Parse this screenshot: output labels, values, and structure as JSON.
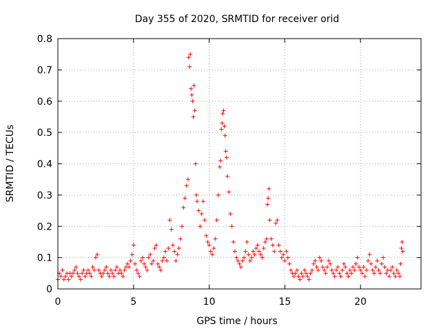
{
  "chart_data": {
    "type": "scatter",
    "title": "Day 355 of 2020, SRMTID for receiver orid",
    "xlabel": "GPS time / hours",
    "ylabel": "SRMTID / TECUs",
    "xlim": [
      0,
      24
    ],
    "ylim": [
      0,
      0.8
    ],
    "xticks": [
      0,
      5,
      10,
      15,
      20
    ],
    "xtick_labels": [
      "0",
      "5",
      "10",
      "15",
      "20"
    ],
    "yticks": [
      0,
      0.1,
      0.2,
      0.3,
      0.4,
      0.5,
      0.6,
      0.7,
      0.8
    ],
    "ytick_labels": [
      "0",
      "0.1",
      "0.2",
      "0.3",
      "0.4",
      "0.5",
      "0.6",
      "0.7",
      "0.8"
    ],
    "grid": true,
    "marker": "+",
    "color": "#ff0000",
    "series": [
      {
        "name": "SRMTID",
        "points": [
          [
            0.0,
            0.03
          ],
          [
            0.1,
            0.05
          ],
          [
            0.2,
            0.04
          ],
          [
            0.3,
            0.06
          ],
          [
            0.4,
            0.03
          ],
          [
            0.5,
            0.04
          ],
          [
            0.6,
            0.05
          ],
          [
            0.7,
            0.03
          ],
          [
            0.8,
            0.05
          ],
          [
            0.9,
            0.04
          ],
          [
            1.0,
            0.05
          ],
          [
            1.1,
            0.06
          ],
          [
            1.2,
            0.07
          ],
          [
            1.3,
            0.05
          ],
          [
            1.4,
            0.04
          ],
          [
            1.5,
            0.03
          ],
          [
            1.6,
            0.05
          ],
          [
            1.7,
            0.06
          ],
          [
            1.8,
            0.04
          ],
          [
            1.9,
            0.05
          ],
          [
            2.0,
            0.06
          ],
          [
            2.1,
            0.05
          ],
          [
            2.2,
            0.04
          ],
          [
            2.3,
            0.07
          ],
          [
            2.4,
            0.06
          ],
          [
            2.5,
            0.1
          ],
          [
            2.6,
            0.11
          ],
          [
            2.7,
            0.06
          ],
          [
            2.8,
            0.05
          ],
          [
            2.9,
            0.04
          ],
          [
            3.0,
            0.05
          ],
          [
            3.1,
            0.06
          ],
          [
            3.2,
            0.07
          ],
          [
            3.3,
            0.05
          ],
          [
            3.4,
            0.04
          ],
          [
            3.5,
            0.06
          ],
          [
            3.6,
            0.05
          ],
          [
            3.7,
            0.04
          ],
          [
            3.8,
            0.06
          ],
          [
            3.9,
            0.07
          ],
          [
            4.0,
            0.05
          ],
          [
            4.1,
            0.06
          ],
          [
            4.2,
            0.05
          ],
          [
            4.3,
            0.04
          ],
          [
            4.4,
            0.06
          ],
          [
            4.5,
            0.07
          ],
          [
            4.6,
            0.08
          ],
          [
            4.7,
            0.07
          ],
          [
            4.8,
            0.09
          ],
          [
            4.9,
            0.11
          ],
          [
            5.0,
            0.14
          ],
          [
            5.1,
            0.08
          ],
          [
            5.2,
            0.06
          ],
          [
            5.3,
            0.05
          ],
          [
            5.4,
            0.04
          ],
          [
            5.5,
            0.09
          ],
          [
            5.6,
            0.1
          ],
          [
            5.7,
            0.08
          ],
          [
            5.8,
            0.07
          ],
          [
            5.9,
            0.06
          ],
          [
            6.0,
            0.1
          ],
          [
            6.1,
            0.11
          ],
          [
            6.2,
            0.08
          ],
          [
            6.3,
            0.09
          ],
          [
            6.4,
            0.13
          ],
          [
            6.5,
            0.14
          ],
          [
            6.6,
            0.08
          ],
          [
            6.7,
            0.07
          ],
          [
            6.8,
            0.06
          ],
          [
            6.9,
            0.09
          ],
          [
            7.0,
            0.1
          ],
          [
            7.1,
            0.12
          ],
          [
            7.2,
            0.09
          ],
          [
            7.3,
            0.13
          ],
          [
            7.4,
            0.22
          ],
          [
            7.5,
            0.19
          ],
          [
            7.6,
            0.14
          ],
          [
            7.7,
            0.12
          ],
          [
            7.8,
            0.09
          ],
          [
            7.9,
            0.11
          ],
          [
            8.0,
            0.13
          ],
          [
            8.1,
            0.16
          ],
          [
            8.2,
            0.2
          ],
          [
            8.3,
            0.26
          ],
          [
            8.4,
            0.29
          ],
          [
            8.5,
            0.33
          ],
          [
            8.6,
            0.35
          ],
          [
            8.65,
            0.74
          ],
          [
            8.7,
            0.71
          ],
          [
            8.75,
            0.75
          ],
          [
            8.8,
            0.64
          ],
          [
            8.85,
            0.62
          ],
          [
            8.9,
            0.6
          ],
          [
            8.95,
            0.55
          ],
          [
            9.0,
            0.65
          ],
          [
            9.05,
            0.57
          ],
          [
            9.1,
            0.4
          ],
          [
            9.15,
            0.3
          ],
          [
            9.2,
            0.28
          ],
          [
            9.3,
            0.25
          ],
          [
            9.4,
            0.2
          ],
          [
            9.5,
            0.24
          ],
          [
            9.6,
            0.28
          ],
          [
            9.7,
            0.22
          ],
          [
            9.8,
            0.17
          ],
          [
            9.9,
            0.15
          ],
          [
            10.0,
            0.14
          ],
          [
            10.1,
            0.12
          ],
          [
            10.2,
            0.11
          ],
          [
            10.3,
            0.13
          ],
          [
            10.4,
            0.16
          ],
          [
            10.5,
            0.22
          ],
          [
            10.6,
            0.3
          ],
          [
            10.7,
            0.39
          ],
          [
            10.75,
            0.41
          ],
          [
            10.8,
            0.51
          ],
          [
            10.85,
            0.53
          ],
          [
            10.9,
            0.56
          ],
          [
            10.95,
            0.57
          ],
          [
            11.0,
            0.52
          ],
          [
            11.05,
            0.49
          ],
          [
            11.1,
            0.44
          ],
          [
            11.15,
            0.42
          ],
          [
            11.2,
            0.36
          ],
          [
            11.3,
            0.31
          ],
          [
            11.4,
            0.24
          ],
          [
            11.5,
            0.2
          ],
          [
            11.6,
            0.15
          ],
          [
            11.7,
            0.12
          ],
          [
            11.8,
            0.1
          ],
          [
            11.9,
            0.09
          ],
          [
            12.0,
            0.08
          ],
          [
            12.1,
            0.07
          ],
          [
            12.2,
            0.09
          ],
          [
            12.3,
            0.1
          ],
          [
            12.4,
            0.12
          ],
          [
            12.5,
            0.15
          ],
          [
            12.6,
            0.11
          ],
          [
            12.7,
            0.09
          ],
          [
            12.8,
            0.1
          ],
          [
            12.9,
            0.12
          ],
          [
            13.0,
            0.11
          ],
          [
            13.1,
            0.13
          ],
          [
            13.2,
            0.14
          ],
          [
            13.3,
            0.12
          ],
          [
            13.4,
            0.11
          ],
          [
            13.5,
            0.1
          ],
          [
            13.6,
            0.13
          ],
          [
            13.7,
            0.15
          ],
          [
            13.8,
            0.16
          ],
          [
            13.85,
            0.27
          ],
          [
            13.9,
            0.29
          ],
          [
            13.95,
            0.32
          ],
          [
            14.0,
            0.22
          ],
          [
            14.1,
            0.16
          ],
          [
            14.2,
            0.14
          ],
          [
            14.3,
            0.12
          ],
          [
            14.4,
            0.21
          ],
          [
            14.5,
            0.22
          ],
          [
            14.6,
            0.14
          ],
          [
            14.7,
            0.12
          ],
          [
            14.8,
            0.1
          ],
          [
            14.9,
            0.11
          ],
          [
            15.0,
            0.09
          ],
          [
            15.1,
            0.12
          ],
          [
            15.2,
            0.1
          ],
          [
            15.3,
            0.08
          ],
          [
            15.4,
            0.06
          ],
          [
            15.5,
            0.05
          ],
          [
            15.6,
            0.04
          ],
          [
            15.7,
            0.05
          ],
          [
            15.8,
            0.06
          ],
          [
            15.9,
            0.04
          ],
          [
            16.0,
            0.03
          ],
          [
            16.1,
            0.05
          ],
          [
            16.2,
            0.04
          ],
          [
            16.3,
            0.06
          ],
          [
            16.4,
            0.05
          ],
          [
            16.5,
            0.04
          ],
          [
            16.6,
            0.03
          ],
          [
            16.7,
            0.05
          ],
          [
            16.8,
            0.06
          ],
          [
            16.9,
            0.08
          ],
          [
            17.0,
            0.09
          ],
          [
            17.1,
            0.07
          ],
          [
            17.2,
            0.06
          ],
          [
            17.3,
            0.1
          ],
          [
            17.4,
            0.09
          ],
          [
            17.5,
            0.07
          ],
          [
            17.6,
            0.06
          ],
          [
            17.7,
            0.05
          ],
          [
            17.8,
            0.07
          ],
          [
            17.9,
            0.09
          ],
          [
            18.0,
            0.08
          ],
          [
            18.1,
            0.06
          ],
          [
            18.2,
            0.05
          ],
          [
            18.3,
            0.04
          ],
          [
            18.4,
            0.06
          ],
          [
            18.5,
            0.07
          ],
          [
            18.6,
            0.05
          ],
          [
            18.7,
            0.04
          ],
          [
            18.8,
            0.06
          ],
          [
            18.9,
            0.08
          ],
          [
            19.0,
            0.07
          ],
          [
            19.1,
            0.05
          ],
          [
            19.2,
            0.04
          ],
          [
            19.3,
            0.06
          ],
          [
            19.4,
            0.05
          ],
          [
            19.5,
            0.07
          ],
          [
            19.6,
            0.06
          ],
          [
            19.7,
            0.08
          ],
          [
            19.8,
            0.1
          ],
          [
            19.9,
            0.07
          ],
          [
            20.0,
            0.06
          ],
          [
            20.1,
            0.05
          ],
          [
            20.2,
            0.07
          ],
          [
            20.3,
            0.04
          ],
          [
            20.4,
            0.06
          ],
          [
            20.5,
            0.09
          ],
          [
            20.6,
            0.11
          ],
          [
            20.7,
            0.08
          ],
          [
            20.8,
            0.06
          ],
          [
            20.9,
            0.05
          ],
          [
            21.0,
            0.07
          ],
          [
            21.1,
            0.09
          ],
          [
            21.2,
            0.06
          ],
          [
            21.3,
            0.05
          ],
          [
            21.4,
            0.08
          ],
          [
            21.5,
            0.1
          ],
          [
            21.6,
            0.07
          ],
          [
            21.7,
            0.05
          ],
          [
            21.8,
            0.06
          ],
          [
            21.9,
            0.04
          ],
          [
            22.0,
            0.06
          ],
          [
            22.1,
            0.07
          ],
          [
            22.2,
            0.05
          ],
          [
            22.3,
            0.04
          ],
          [
            22.4,
            0.06
          ],
          [
            22.5,
            0.05
          ],
          [
            22.6,
            0.04
          ],
          [
            22.65,
            0.08
          ],
          [
            22.7,
            0.13
          ],
          [
            22.75,
            0.15
          ],
          [
            22.8,
            0.12
          ]
        ]
      }
    ]
  }
}
